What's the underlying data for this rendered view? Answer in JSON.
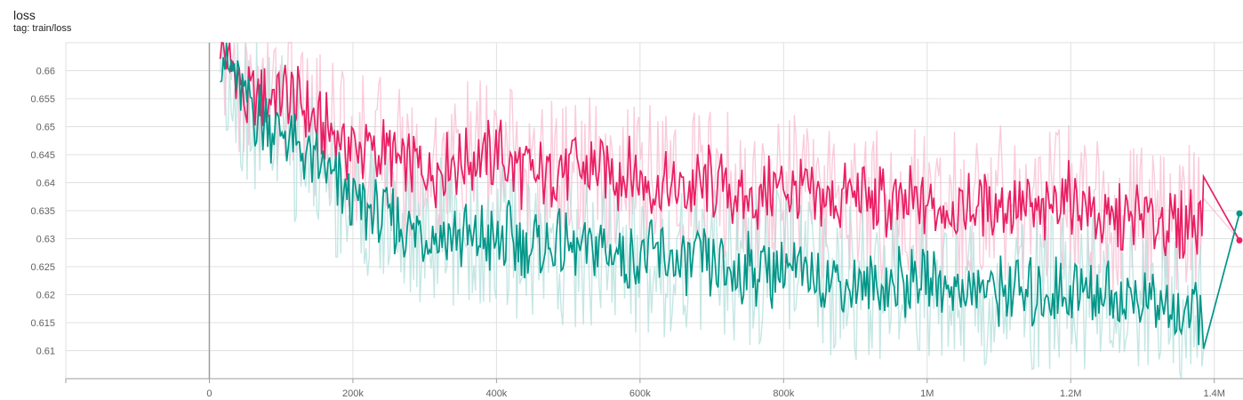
{
  "header": {
    "title": "loss",
    "tag": "tag: train/loss"
  },
  "chart_data": {
    "type": "line",
    "title": "loss",
    "subtitle": "tag: train/loss",
    "xlabel": "",
    "ylabel": "",
    "xlim": [
      -200000,
      1440000
    ],
    "ylim": [
      0.605,
      0.665
    ],
    "x_ticks": [
      0,
      200000,
      400000,
      600000,
      800000,
      1000000,
      1200000,
      1400000
    ],
    "x_tick_labels": [
      "0",
      "200k",
      "400k",
      "600k",
      "800k",
      "1M",
      "1.2M",
      "1.4M"
    ],
    "y_ticks": [
      0.61,
      0.615,
      0.62,
      0.625,
      0.63,
      0.635,
      0.64,
      0.645,
      0.65,
      0.655,
      0.66
    ],
    "y_tick_labels": [
      "0.61",
      "0.615",
      "0.62",
      "0.625",
      "0.63",
      "0.635",
      "0.64",
      "0.645",
      "0.65",
      "0.655",
      "0.66"
    ],
    "grid": true,
    "legend": "none",
    "series": [
      {
        "color": "#e91e63",
        "raw_color": "#f8bbd0",
        "x": [
          15000,
          50000,
          100000,
          150000,
          200000,
          250000,
          300000,
          350000,
          400000,
          450000,
          500000,
          550000,
          600000,
          650000,
          700000,
          750000,
          800000,
          850000,
          900000,
          950000,
          1000000,
          1050000,
          1100000,
          1150000,
          1200000,
          1250000,
          1300000,
          1350000,
          1385000,
          1435000
        ],
        "values": [
          0.665,
          0.655,
          0.656,
          0.651,
          0.646,
          0.645,
          0.642,
          0.644,
          0.645,
          0.641,
          0.643,
          0.642,
          0.641,
          0.638,
          0.64,
          0.637,
          0.639,
          0.636,
          0.638,
          0.636,
          0.636,
          0.635,
          0.637,
          0.634,
          0.638,
          0.633,
          0.634,
          0.632,
          0.635,
          0.6297
        ]
      },
      {
        "color": "#009688",
        "raw_color": "#b2dfdb",
        "x": [
          15000,
          50000,
          100000,
          150000,
          200000,
          250000,
          300000,
          350000,
          400000,
          450000,
          500000,
          550000,
          600000,
          650000,
          700000,
          750000,
          800000,
          850000,
          900000,
          950000,
          1000000,
          1050000,
          1100000,
          1150000,
          1200000,
          1250000,
          1300000,
          1350000,
          1385000,
          1435000
        ],
        "values": [
          0.665,
          0.654,
          0.649,
          0.643,
          0.637,
          0.633,
          0.631,
          0.63,
          0.63,
          0.629,
          0.628,
          0.628,
          0.627,
          0.626,
          0.625,
          0.624,
          0.625,
          0.623,
          0.622,
          0.622,
          0.623,
          0.621,
          0.621,
          0.62,
          0.621,
          0.62,
          0.619,
          0.617,
          0.616,
          0.6345
        ]
      }
    ]
  }
}
